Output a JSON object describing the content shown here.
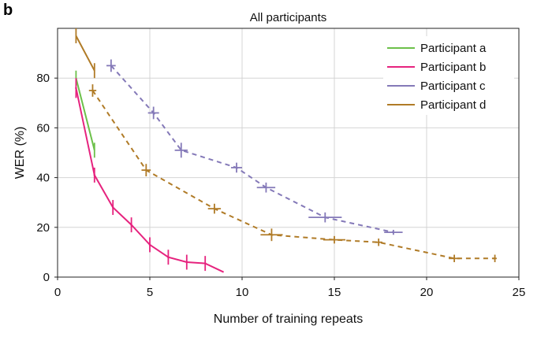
{
  "panel_label": "b",
  "chart_data": {
    "type": "line",
    "title": "All participants",
    "xlabel": "Number of training repeats",
    "ylabel": "WER (%)",
    "xlim": [
      0,
      25
    ],
    "ylim": [
      0,
      100
    ],
    "xticks": [
      0,
      5,
      10,
      15,
      20,
      25
    ],
    "yticks": [
      0,
      20,
      40,
      60,
      80
    ],
    "grid": true,
    "legend_position": "top-right",
    "series": [
      {
        "name": "Participant a",
        "color": "#6cc04a",
        "style": "solid",
        "points": [
          {
            "x": 1,
            "y": 80,
            "xerr": 0,
            "yerr": 3
          },
          {
            "x": 2,
            "y": 51,
            "xerr": 0,
            "yerr": 3
          }
        ]
      },
      {
        "name": "Participant b",
        "color": "#e6237e",
        "style": "solid",
        "points": [
          {
            "x": 1,
            "y": 76,
            "xerr": 0.05,
            "yerr": 4
          },
          {
            "x": 2,
            "y": 41,
            "xerr": 0.05,
            "yerr": 3
          },
          {
            "x": 3,
            "y": 28,
            "xerr": 0.05,
            "yerr": 3
          },
          {
            "x": 4,
            "y": 21,
            "xerr": 0.05,
            "yerr": 3
          },
          {
            "x": 5,
            "y": 13,
            "xerr": 0.05,
            "yerr": 3
          },
          {
            "x": 6,
            "y": 8,
            "xerr": 0.05,
            "yerr": 3
          },
          {
            "x": 7,
            "y": 6,
            "xerr": 0.05,
            "yerr": 3
          },
          {
            "x": 8,
            "y": 5.5,
            "xerr": 0.05,
            "yerr": 3
          },
          {
            "x": 9,
            "y": 2,
            "xerr": 0,
            "yerr": 0
          }
        ]
      },
      {
        "name": "Participant c",
        "color": "#8479b8",
        "style": "dashed",
        "points": [
          {
            "x": 2.9,
            "y": 85,
            "xerr": 0.25,
            "yerr": 2.5
          },
          {
            "x": 5.2,
            "y": 66,
            "xerr": 0.3,
            "yerr": 2.5
          },
          {
            "x": 6.7,
            "y": 51,
            "xerr": 0.35,
            "yerr": 3
          },
          {
            "x": 9.7,
            "y": 44,
            "xerr": 0.3,
            "yerr": 2
          },
          {
            "x": 11.3,
            "y": 36,
            "xerr": 0.5,
            "yerr": 2
          },
          {
            "x": 14.5,
            "y": 24,
            "xerr": 0.9,
            "yerr": 2
          },
          {
            "x": 18.2,
            "y": 18,
            "xerr": 0.5,
            "yerr": 1
          }
        ]
      },
      {
        "name": "Participant d",
        "color": "#b07b27",
        "style": "dashed",
        "points": [
          {
            "x": 1.9,
            "y": 75,
            "xerr": 0.2,
            "yerr": 2.5
          },
          {
            "x": 4.8,
            "y": 43,
            "xerr": 0.25,
            "yerr": 2.5
          },
          {
            "x": 8.5,
            "y": 27.5,
            "xerr": 0.35,
            "yerr": 2
          },
          {
            "x": 11.6,
            "y": 17,
            "xerr": 0.6,
            "yerr": 2.5
          },
          {
            "x": 15,
            "y": 15,
            "xerr": 0.6,
            "yerr": 1.5
          },
          {
            "x": 17.4,
            "y": 14,
            "xerr": 0.2,
            "yerr": 1.5
          },
          {
            "x": 21.5,
            "y": 7.5,
            "xerr": 0.3,
            "yerr": 1.5
          },
          {
            "x": 23.7,
            "y": 7.5,
            "xerr": 0.1,
            "yerr": 1.5
          }
        ],
        "extra_solid_segment": [
          {
            "x": 1,
            "y": 97,
            "xerr": 0,
            "yerr": 3
          },
          {
            "x": 2,
            "y": 83,
            "xerr": 0,
            "yerr": 3
          }
        ]
      }
    ]
  }
}
